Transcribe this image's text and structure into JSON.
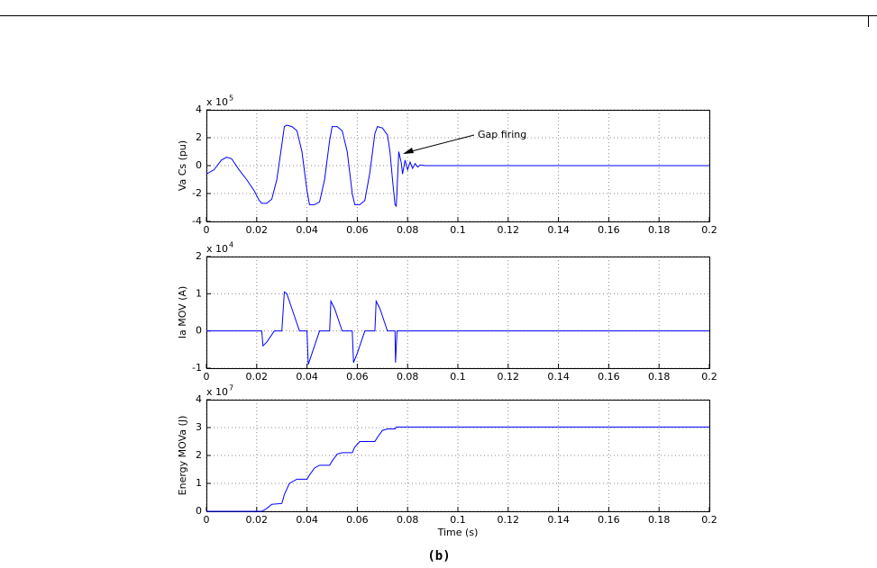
{
  "chart_data": [
    {
      "type": "line",
      "ylabel": "Va Cs (pu)",
      "y_multiplier": {
        "text": "x 10",
        "exponent": "5"
      },
      "annotation": "Gap firing",
      "xlim": [
        0,
        0.2
      ],
      "ylim": [
        -4,
        4
      ],
      "xticks": [
        0,
        0.02,
        0.04,
        0.06,
        0.08,
        0.1,
        0.12,
        0.14,
        0.16,
        0.18,
        0.2
      ],
      "yticks": [
        -4,
        -2,
        0,
        2,
        4
      ],
      "grid": true,
      "color": "#0000ff",
      "x": [
        0,
        0.003,
        0.006,
        0.008,
        0.01,
        0.013,
        0.016,
        0.019,
        0.021,
        0.022,
        0.024,
        0.026,
        0.028,
        0.03,
        0.031,
        0.032,
        0.034,
        0.036,
        0.038,
        0.04,
        0.041,
        0.043,
        0.045,
        0.047,
        0.049,
        0.05,
        0.052,
        0.054,
        0.056,
        0.058,
        0.059,
        0.061,
        0.063,
        0.065,
        0.067,
        0.068,
        0.07,
        0.072,
        0.073,
        0.074,
        0.075,
        0.0755,
        0.0765,
        0.0775,
        0.078,
        0.079,
        0.08,
        0.081,
        0.082,
        0.083,
        0.084,
        0.085,
        0.087,
        0.2
      ],
      "values": [
        -0.6,
        -0.3,
        0.4,
        0.6,
        0.5,
        -0.3,
        -1.0,
        -1.8,
        -2.5,
        -2.7,
        -2.7,
        -2.4,
        -1.0,
        1.5,
        2.8,
        2.9,
        2.8,
        2.5,
        1.0,
        -1.8,
        -2.8,
        -2.8,
        -2.6,
        -1.0,
        1.8,
        2.8,
        2.8,
        2.5,
        1.0,
        -2.0,
        -2.8,
        -2.8,
        -2.5,
        -0.5,
        2.3,
        2.8,
        2.7,
        2.2,
        1.0,
        -1.0,
        -2.8,
        -2.9,
        1.0,
        0.2,
        -0.6,
        0.4,
        -0.3,
        0.25,
        -0.2,
        0.15,
        -0.1,
        0.05,
        0,
        0
      ]
    },
    {
      "type": "line",
      "ylabel": "Ia MOV (A)",
      "y_multiplier": {
        "text": "x 10",
        "exponent": "4"
      },
      "xlim": [
        0,
        0.2
      ],
      "ylim": [
        -1,
        2
      ],
      "xticks": [
        0,
        0.02,
        0.04,
        0.06,
        0.08,
        0.1,
        0.12,
        0.14,
        0.16,
        0.18,
        0.2
      ],
      "yticks": [
        -1,
        0,
        1,
        2
      ],
      "grid": true,
      "color": "#0000ff",
      "x": [
        0,
        0.022,
        0.0225,
        0.024,
        0.026,
        0.027,
        0.03,
        0.031,
        0.032,
        0.034,
        0.036,
        0.037,
        0.04,
        0.0405,
        0.042,
        0.044,
        0.045,
        0.049,
        0.0495,
        0.051,
        0.053,
        0.054,
        0.058,
        0.0585,
        0.06,
        0.062,
        0.063,
        0.067,
        0.0675,
        0.069,
        0.071,
        0.072,
        0.075,
        0.0752,
        0.0758,
        0.2
      ],
      "values": [
        0,
        0,
        -0.4,
        -0.3,
        -0.1,
        0,
        0,
        1.05,
        1.0,
        0.6,
        0.2,
        0,
        0,
        -0.9,
        -0.6,
        -0.2,
        0,
        0,
        0.8,
        0.6,
        0.2,
        0,
        0,
        -0.85,
        -0.6,
        -0.2,
        0,
        0,
        0.8,
        0.6,
        0.2,
        0,
        0,
        -0.85,
        0,
        0
      ]
    },
    {
      "type": "line",
      "ylabel": "Energy MOVa (J)",
      "y_multiplier": {
        "text": "x 10",
        "exponent": "7"
      },
      "xlabel": "Time (s)",
      "xlim": [
        0,
        0.2
      ],
      "ylim": [
        0,
        4
      ],
      "xticks": [
        0,
        0.02,
        0.04,
        0.06,
        0.08,
        0.1,
        0.12,
        0.14,
        0.16,
        0.18,
        0.2
      ],
      "yticks": [
        0,
        1,
        2,
        3,
        4
      ],
      "grid": true,
      "color": "#0000ff",
      "x": [
        0,
        0.022,
        0.024,
        0.026,
        0.03,
        0.031,
        0.033,
        0.036,
        0.04,
        0.041,
        0.043,
        0.045,
        0.049,
        0.05,
        0.052,
        0.054,
        0.058,
        0.059,
        0.061,
        0.067,
        0.068,
        0.07,
        0.072,
        0.075,
        0.0755,
        0.2
      ],
      "values": [
        0,
        0,
        0.1,
        0.25,
        0.28,
        0.6,
        1.0,
        1.15,
        1.15,
        1.3,
        1.55,
        1.65,
        1.65,
        1.8,
        2.05,
        2.1,
        2.1,
        2.3,
        2.5,
        2.5,
        2.65,
        2.9,
        2.95,
        2.95,
        3.02,
        3.02
      ]
    }
  ],
  "caption": "(b)"
}
